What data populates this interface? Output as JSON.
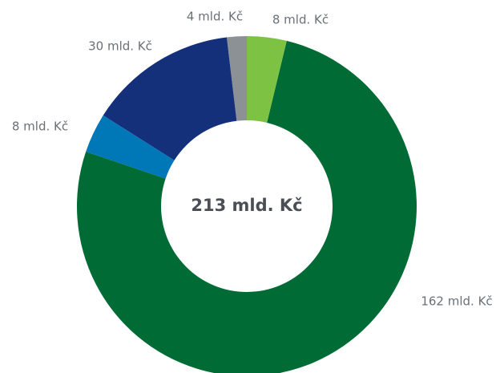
{
  "chart_data": {
    "type": "donut",
    "center_label": "213 mld. Kč",
    "values": [
      8,
      162,
      8,
      30,
      4
    ],
    "value_labels": [
      "8 mld. Kč",
      "162 mld. Kč",
      "8 mld. Kč",
      "30 mld. Kč",
      "4 mld. Kč"
    ],
    "colors": [
      "#7dc242",
      "#006b35",
      "#0077b6",
      "#14307a",
      "#8c9196"
    ]
  }
}
